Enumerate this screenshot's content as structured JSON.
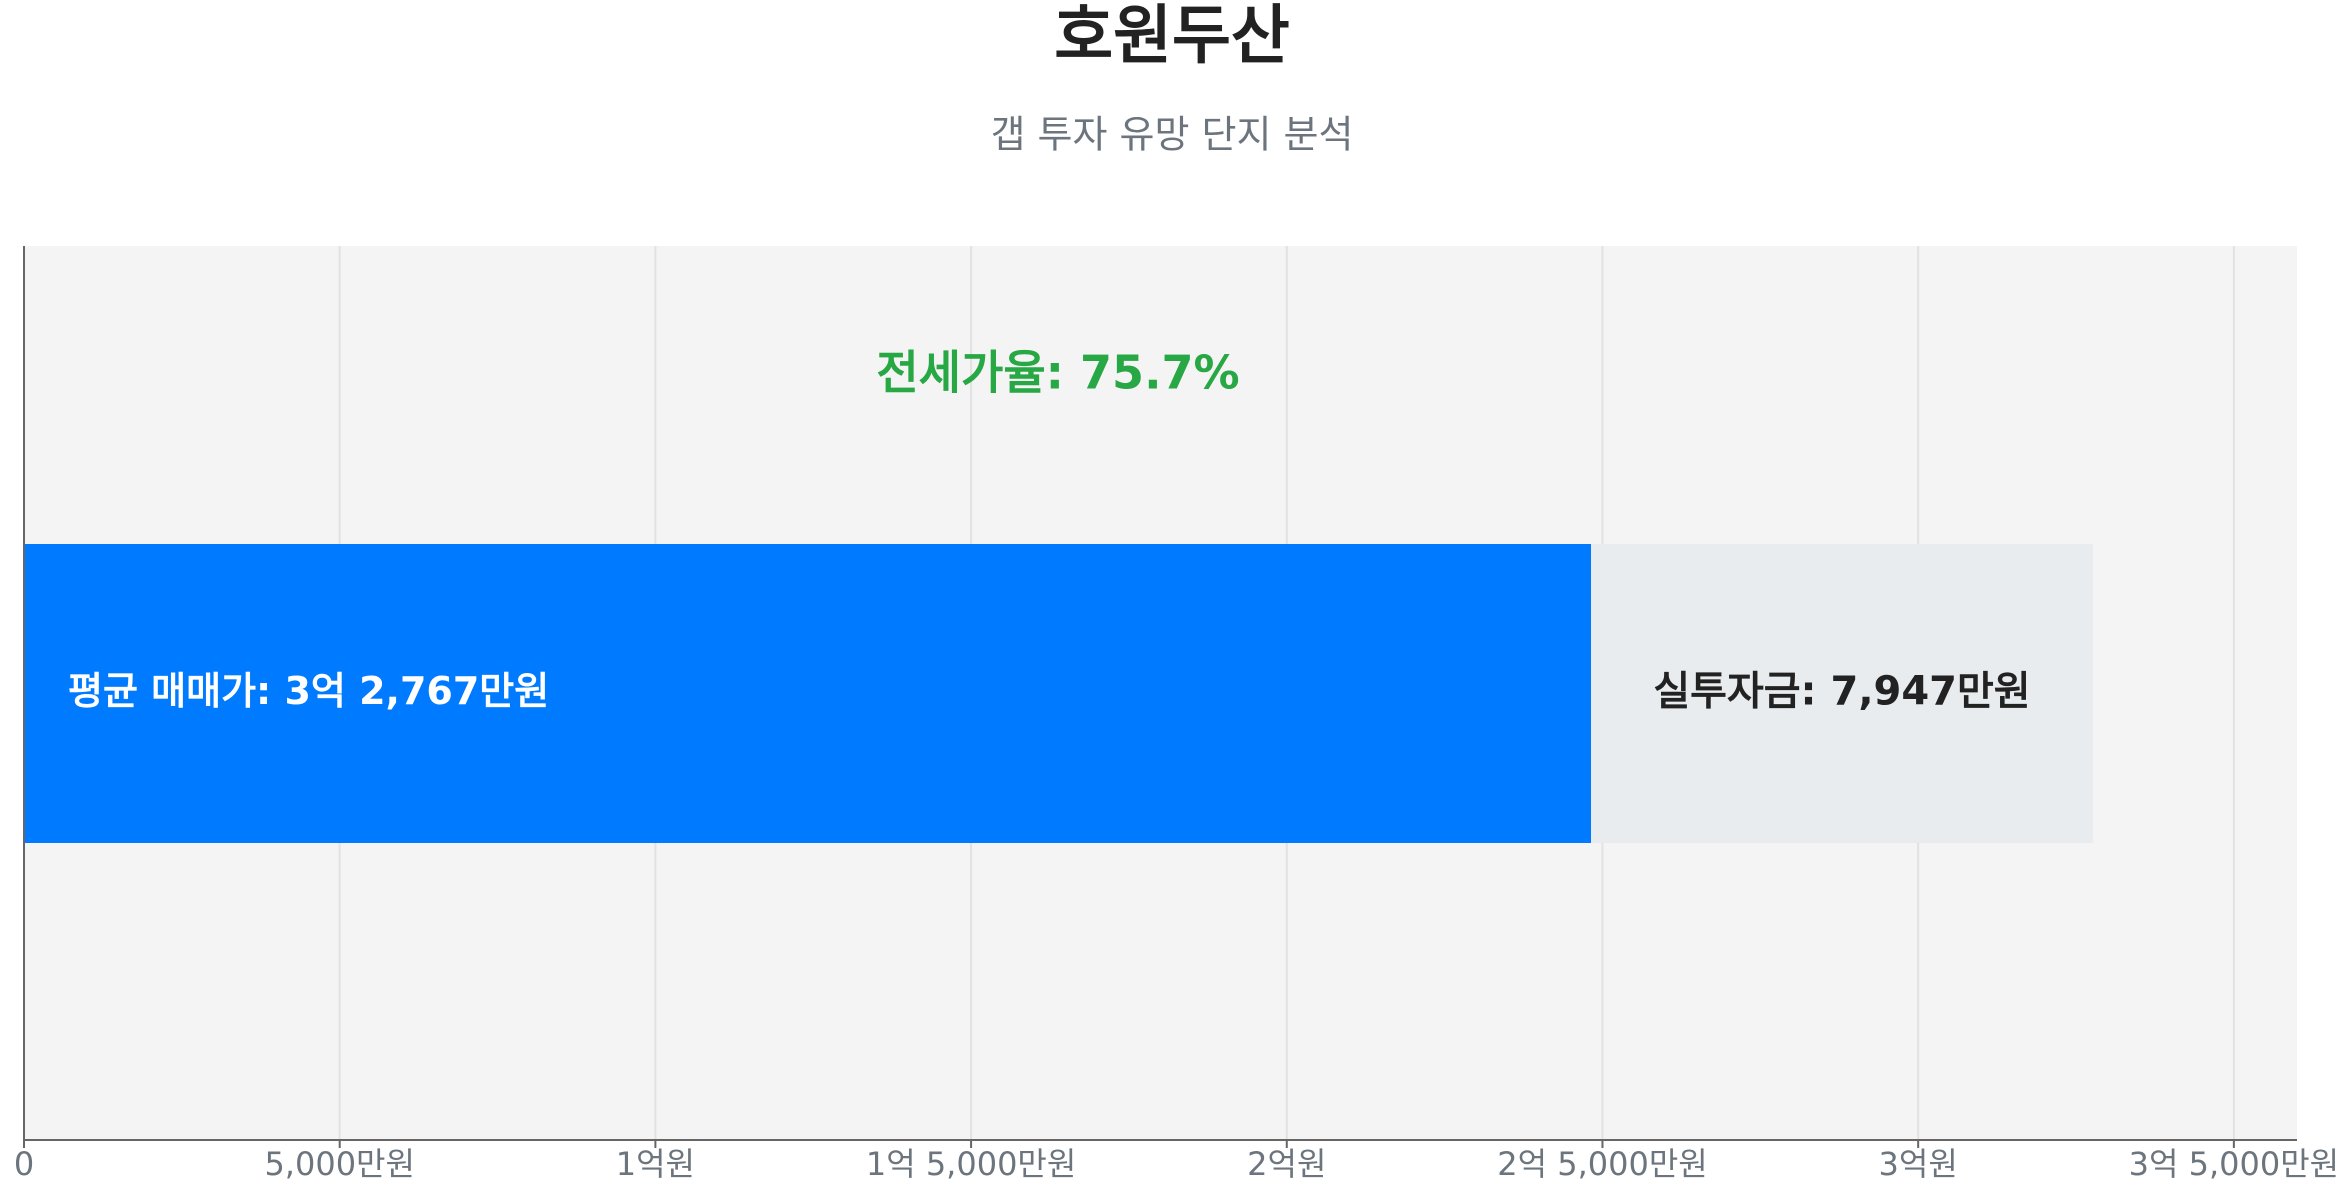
{
  "chart_data": {
    "type": "stacked-barh",
    "title": "호원두산",
    "subtitle": "갭 투자 유망 단지 분석",
    "annotation": "전세가율: 75.7%",
    "bar_label": "평균 매매가: 3억 2,767만원",
    "series": [
      {
        "color": "#007bff",
        "values": [
          24820
        ]
      },
      {
        "color": "#e9ecef",
        "values": [
          7947
        ],
        "value_labels": [
          "실투자금: 7,947만원"
        ]
      }
    ],
    "xlim": [
      0,
      36000
    ],
    "xticks": [
      0,
      {
        "value": 5000,
        "label": "5,000만원"
      },
      {
        "value": 10000,
        "label": "1억원"
      },
      {
        "value": 15000,
        "label": "1억 5,000만원"
      },
      {
        "value": 20000,
        "label": "2억원"
      },
      {
        "value": 25000,
        "label": "2억 5,000만원"
      },
      {
        "value": 30000,
        "label": "3억원"
      },
      {
        "value": 35000,
        "label": "3억 5,000만원"
      }
    ],
    "grid": true
  }
}
